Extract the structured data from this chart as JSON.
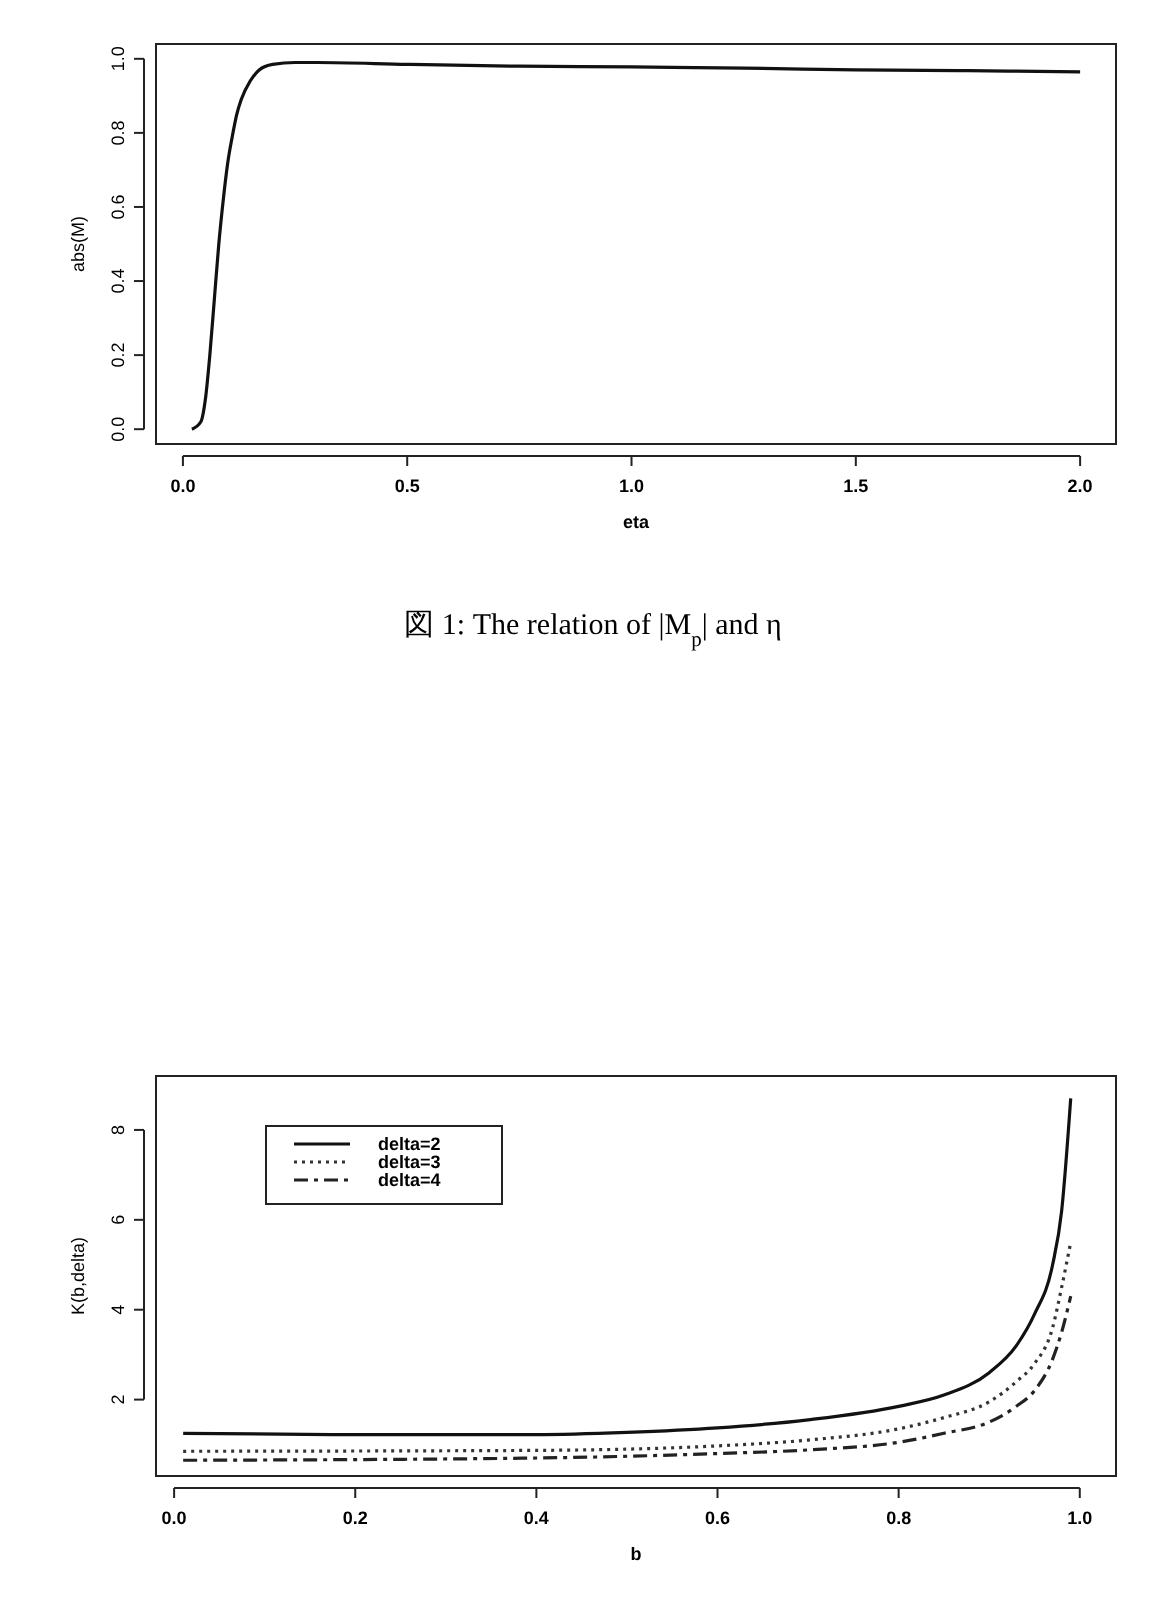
{
  "chart_data": [
    {
      "type": "line",
      "xlabel": "eta",
      "ylabel": "abs(M)",
      "annotations": [
        "図 1: The relation of |M$_{p}$| and η"
      ],
      "xlim": [
        -0.06,
        2.08
      ],
      "ylim": [
        -0.04,
        1.04
      ],
      "xticks": [
        {
          "value": 0,
          "label": "0.0"
        },
        0.5,
        {
          "value": 1,
          "label": "1.0"
        },
        1.5,
        {
          "value": 2,
          "label": "2.0"
        }
      ],
      "yticks": [
        {
          "value": 0,
          "label": "0.0"
        },
        0.2,
        0.4,
        0.6,
        0.8,
        {
          "value": 1,
          "label": "1.0"
        }
      ],
      "grid": false,
      "legend": false,
      "series": [
        {
          "color": "#111111",
          "line_style": "solid",
          "x": [
            0.02,
            0.04,
            0.05,
            0.06,
            0.07,
            0.08,
            0.09,
            0.1,
            0.11,
            0.12,
            0.13,
            0.15,
            0.17,
            0.2,
            0.25,
            0.3,
            0.5,
            0.75,
            1.0,
            1.25,
            1.5,
            1.75,
            2.0
          ],
          "values": [
            0.0,
            0.02,
            0.08,
            0.2,
            0.35,
            0.5,
            0.62,
            0.72,
            0.79,
            0.85,
            0.89,
            0.94,
            0.97,
            0.985,
            0.99,
            0.99,
            0.985,
            0.98,
            0.978,
            0.975,
            0.97,
            0.968,
            0.965
          ]
        }
      ]
    },
    {
      "type": "line",
      "xlabel": "b",
      "ylabel": "K(b,delta)",
      "xlim": [
        -0.02,
        1.04
      ],
      "ylim": [
        0.3,
        9.2
      ],
      "xticks": [
        {
          "value": 0,
          "label": "0.0"
        },
        0.2,
        0.4,
        0.6,
        0.8,
        {
          "value": 1,
          "label": "1.0"
        }
      ],
      "yticks": [
        2,
        4,
        6,
        8
      ],
      "grid": false,
      "legend": "top left",
      "series": [
        {
          "name": "delta=2",
          "color": "#111111",
          "line_style": "solid",
          "x": [
            0.01,
            0.2,
            0.4,
            0.5,
            0.6,
            0.7,
            0.8,
            0.85,
            0.9,
            0.93,
            0.95,
            0.97,
            0.98,
            0.99
          ],
          "values": [
            1.25,
            1.22,
            1.22,
            1.27,
            1.37,
            1.55,
            1.85,
            2.1,
            2.6,
            3.2,
            3.9,
            5.0,
            6.2,
            8.7
          ]
        },
        {
          "name": "delta=3",
          "color": "#333333",
          "line_style": "dotted",
          "x": [
            0.01,
            0.4,
            0.6,
            0.7,
            0.8,
            0.85,
            0.9,
            0.93,
            0.95,
            0.97,
            0.98,
            0.99
          ],
          "values": [
            0.85,
            0.87,
            0.97,
            1.1,
            1.35,
            1.6,
            1.95,
            2.4,
            2.8,
            3.6,
            4.5,
            5.5
          ]
        },
        {
          "name": "delta=4",
          "color": "#222222",
          "line_style": "dashed",
          "x": [
            0.01,
            0.4,
            0.6,
            0.7,
            0.8,
            0.85,
            0.9,
            0.93,
            0.95,
            0.97,
            0.98,
            0.99
          ],
          "values": [
            0.65,
            0.7,
            0.8,
            0.88,
            1.05,
            1.25,
            1.5,
            1.85,
            2.2,
            2.9,
            3.5,
            4.3
          ]
        }
      ]
    }
  ]
}
